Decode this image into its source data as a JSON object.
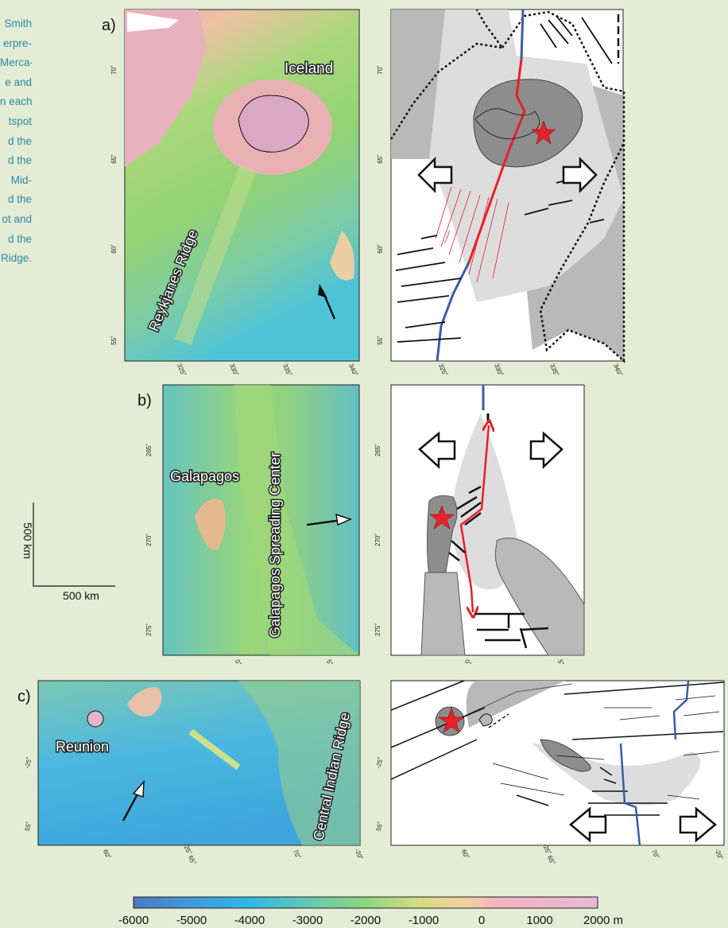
{
  "caption_lines": [
    "Smith",
    "erpre-",
    "Merca-",
    "e and",
    "n each",
    "tspot",
    "d the",
    "d the",
    "Mid-",
    "d the",
    "ot and",
    "d the",
    "Ridge."
  ],
  "panels": {
    "a": {
      "label": "a)",
      "features": [
        "Iceland",
        "Reykjanes Ridge"
      ],
      "lat_ticks": [
        "70˚",
        "65˚",
        "60˚",
        "55˚"
      ],
      "lon_ticks": [
        "325˚",
        "330˚",
        "335˚",
        "340˚"
      ]
    },
    "b": {
      "label": "b)",
      "features": [
        "Galapagos",
        "Galapagos Spreading Center"
      ],
      "lat_ticks": [
        "265˚",
        "270˚",
        "275˚"
      ],
      "lon_ticks": [
        "0˚",
        "5˚"
      ]
    },
    "c": {
      "label": "c)",
      "features": [
        "Reunion",
        "Central Indian Ridge"
      ],
      "lat_ticks": [
        "-25˚",
        "55˚"
      ],
      "lon_ticks": [
        "60˚",
        "-25˚ 65˚",
        "70˚",
        "-20˚"
      ]
    }
  },
  "scale_bar": {
    "vertical_label": "500 km",
    "horizontal_label": "500 km"
  },
  "colorbar": {
    "ticks": [
      "-6000",
      "-5000",
      "-4000",
      "-3000",
      "-2000",
      "-1000",
      "0",
      "1000",
      "2000 m"
    ],
    "colors": [
      "#4f78c0",
      "#2fb7e6",
      "#66c9b0",
      "#8fd57e",
      "#d8dd82",
      "#f2cfa0",
      "#f4b6bf",
      "#eab8d8"
    ]
  },
  "colors": {
    "background": "#e4ecd5",
    "caption": "#2a8aa6",
    "ridge_red": "#e8202a",
    "ridge_blue": "#3a5ca8",
    "hotspot_star": "#e8202a",
    "plume_light": "#dddddd",
    "plume_mid": "#b9b9b9",
    "plume_dark": "#8d8d8d"
  }
}
